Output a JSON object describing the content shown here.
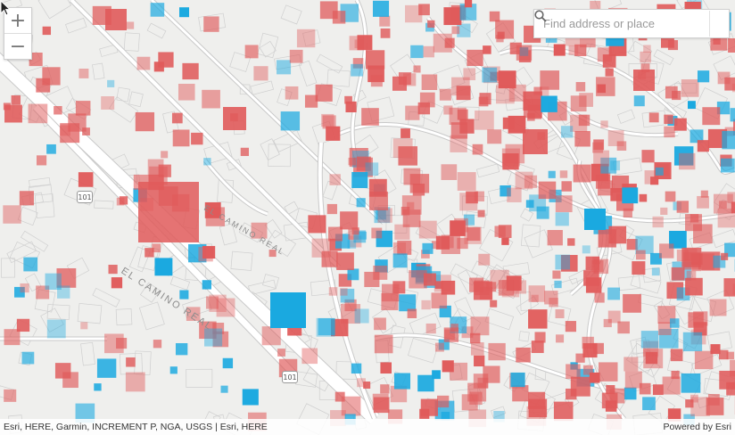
{
  "map": {
    "colors": {
      "background": "#efefed",
      "road": "#ffffff",
      "road_edge": "#c9c9c9",
      "parcel": "#cfcfcf",
      "red": "#e05a5a",
      "blue": "#1aa9e0"
    },
    "zoom": {
      "in_label": "+",
      "out_label": "−"
    },
    "search": {
      "placeholder": "Find address or place",
      "icon": "search-icon"
    },
    "road_labels": [
      "EL CAMINO REAL",
      "EL CAMINO REAL",
      "101",
      "101"
    ],
    "attribution": {
      "left": "Esri, HERE, Garmin, INCREMENT P, NGA, USGS | Esri, HERE",
      "right": "Powered by Esri"
    }
  }
}
